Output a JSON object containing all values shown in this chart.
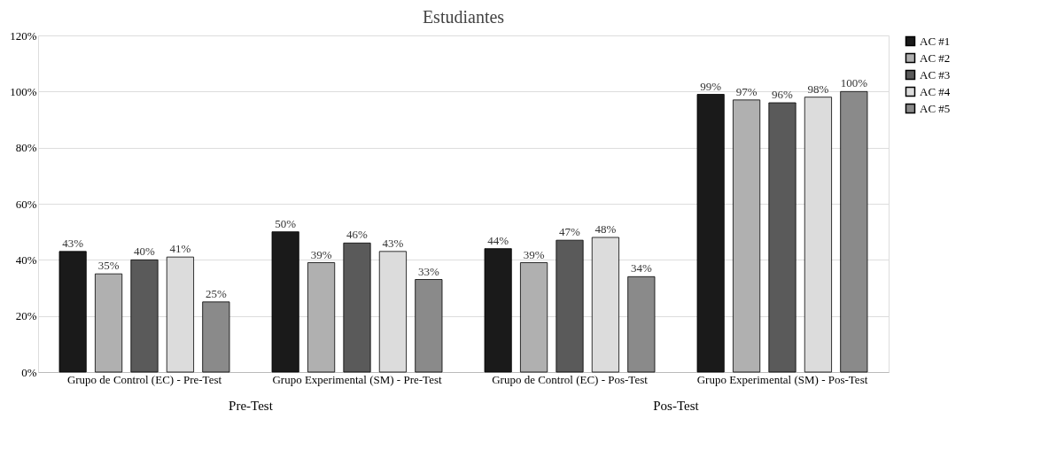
{
  "chart_data": {
    "type": "bar",
    "title": "Estudiantes",
    "categories": [
      "Grupo de Control (EC) - Pre-Test",
      "Grupo Experimental (SM) - Pre-Test",
      "Grupo de Control (EC) - Pos-Test",
      "Grupo Experimental (SM) - Pos-Test"
    ],
    "series": [
      {
        "name": "AC #1",
        "color": "#1a1a1a",
        "values": [
          43,
          50,
          44,
          99
        ],
        "value_labels": [
          "43%",
          "50%",
          "44%",
          "99%"
        ]
      },
      {
        "name": "AC #2",
        "color": "#b0b0b0",
        "values": [
          35,
          39,
          39,
          97
        ],
        "value_labels": [
          "35%",
          "39%",
          "39%",
          "97%"
        ]
      },
      {
        "name": "AC #3",
        "color": "#5a5a5a",
        "values": [
          40,
          46,
          47,
          96
        ],
        "value_labels": [
          "40%",
          "46%",
          "47%",
          "96%"
        ]
      },
      {
        "name": "AC #4",
        "color": "#dcdcdc",
        "values": [
          41,
          43,
          48,
          98
        ],
        "value_labels": [
          "41%",
          "43%",
          "48%",
          "98%"
        ]
      },
      {
        "name": "AC #5",
        "color": "#8a8a8a",
        "values": [
          25,
          33,
          34,
          100
        ],
        "value_labels": [
          "25%",
          "33%",
          "34%",
          "100%"
        ]
      }
    ],
    "ylim": [
      0,
      120
    ],
    "yticks": [
      {
        "value": 0,
        "label": "0%"
      },
      {
        "value": 20,
        "label": "20%"
      },
      {
        "value": 40,
        "label": "40%"
      },
      {
        "value": 60,
        "label": "60%"
      },
      {
        "value": 80,
        "label": "80%"
      },
      {
        "value": 100,
        "label": "100%"
      },
      {
        "value": 120,
        "label": "120%"
      }
    ],
    "grid": "y",
    "legend": "right",
    "annotations": [
      "Pre-Test",
      "Pos-Test"
    ]
  }
}
